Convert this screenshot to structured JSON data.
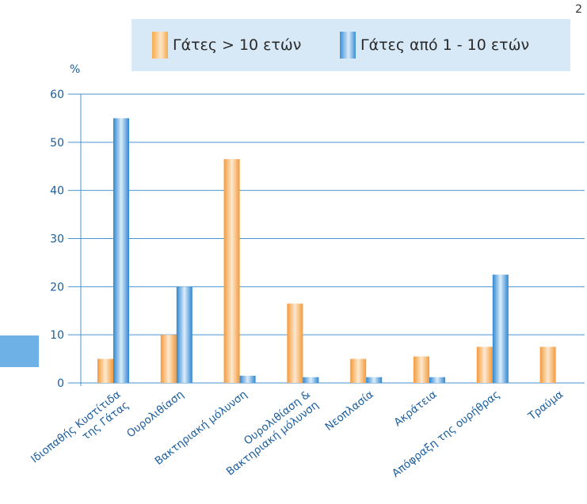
{
  "page_number": "2",
  "legend": [
    {
      "label": "Γάτες > 10 ετών",
      "color": "orange"
    },
    {
      "label": "Γάτες από 1 - 10 ετών",
      "color": "blue"
    }
  ],
  "chart_data": {
    "type": "bar",
    "ylabel": "%",
    "ylim": [
      0,
      60
    ],
    "yticks": [
      "0",
      "10",
      "20",
      "30",
      "40",
      "50",
      "60"
    ],
    "grid": true,
    "legend_position": "top",
    "categories": [
      [
        "Ιδιοπαθής Κυστίτιδα",
        "της Γάτας"
      ],
      [
        "Ουρολιθίαση"
      ],
      [
        "Βακτηριακή μόλυνση"
      ],
      [
        "Ουρολιθίαση &",
        "Βακτηριακή μόλυνση"
      ],
      [
        "Νεοπλασία"
      ],
      [
        "Ακράτεια"
      ],
      [
        "Απόφραξη της ουρήθρας"
      ],
      [
        "Τραύμα"
      ]
    ],
    "series": [
      {
        "name": "Γάτες > 10 ετών",
        "color": "#f7a94c",
        "values": [
          5,
          10,
          46.5,
          16.5,
          5,
          5.5,
          7.5,
          7.5
        ]
      },
      {
        "name": "Γάτες από 1 - 10 ετών",
        "color": "#3b8fd6",
        "values": [
          55,
          20,
          1.5,
          1.2,
          1.2,
          1.2,
          22.5,
          0
        ]
      }
    ]
  }
}
